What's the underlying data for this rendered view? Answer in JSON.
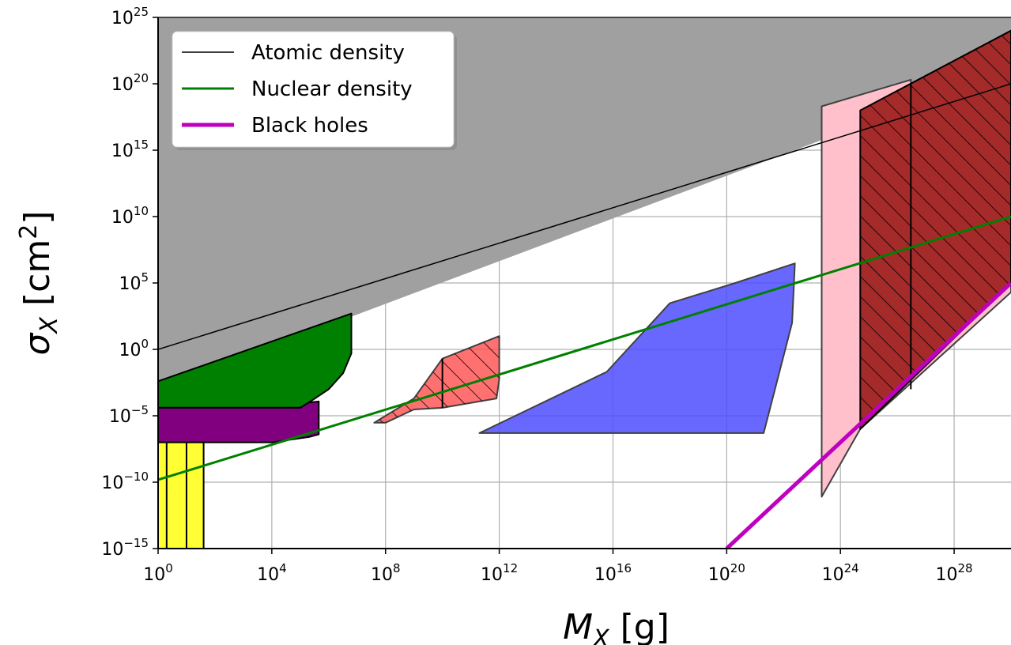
{
  "chart_data": {
    "type": "area",
    "xscale": "log",
    "yscale": "log",
    "xlabel_base": "M",
    "xlabel_sub": "X",
    "xlabel_unit": " [g]",
    "ylabel_base": "σ",
    "ylabel_sub": "X",
    "ylabel_unit": " [cm",
    "ylabel_unit_sup": "2",
    "ylabel_unit_close": "]",
    "xlim": [
      1,
      1e+30
    ],
    "ylim": [
      1e-15,
      1e+25
    ],
    "grid": true,
    "legend_position": "top-left",
    "x_ticks": [
      {
        "value": 1,
        "base": "10",
        "exp": "0"
      },
      {
        "value": 10000.0,
        "base": "10",
        "exp": "4"
      },
      {
        "value": 100000000.0,
        "base": "10",
        "exp": "8"
      },
      {
        "value": 1000000000000.0,
        "base": "10",
        "exp": "12"
      },
      {
        "value": 1e+16,
        "base": "10",
        "exp": "16"
      },
      {
        "value": 1e+20,
        "base": "10",
        "exp": "20"
      },
      {
        "value": 1e+24,
        "base": "10",
        "exp": "24"
      },
      {
        "value": 1e+28,
        "base": "10",
        "exp": "28"
      }
    ],
    "y_ticks": [
      {
        "value": 1e-15,
        "base": "10",
        "exp": "−15"
      },
      {
        "value": 1e-10,
        "base": "10",
        "exp": "−10"
      },
      {
        "value": 1e-05,
        "base": "10",
        "exp": "−5"
      },
      {
        "value": 1,
        "base": "10",
        "exp": "0"
      },
      {
        "value": 100000.0,
        "base": "10",
        "exp": "5"
      },
      {
        "value": 10000000000.0,
        "base": "10",
        "exp": "10"
      },
      {
        "value": 1000000000000000.0,
        "base": "10",
        "exp": "15"
      },
      {
        "value": 1e+20,
        "base": "10",
        "exp": "20"
      },
      {
        "value": 1e+25,
        "base": "10",
        "exp": "25"
      }
    ],
    "series": [
      {
        "name": "Atomic density",
        "color": "#000000",
        "width": 1.5,
        "x": [
          1,
          1e+30
        ],
        "y": [
          1,
          1e+20
        ]
      },
      {
        "name": "Nuclear density",
        "color": "#008000",
        "width": 3,
        "x": [
          1,
          1e+30
        ],
        "y": [
          1.5e-10,
          10000000000.0
        ]
      },
      {
        "name": "Black holes",
        "color": "#bf00bf",
        "width": 5,
        "x": [
          1e+20,
          1e+30
        ],
        "y": [
          1e-15,
          100000.0
        ]
      }
    ],
    "regions": [
      {
        "id": "gray-excluded",
        "fill": "#a0a0a0",
        "opacity": 1,
        "stroke": "none",
        "points": [
          [
            1,
            1e+25
          ],
          [
            1e+30,
            1e+25
          ],
          [
            1e+30,
            1.3e+21
          ],
          [
            1,
            0.001
          ]
        ]
      },
      {
        "id": "green-region",
        "fill": "#008000",
        "opacity": 1,
        "stroke": "#000000",
        "points": [
          [
            1,
            0.004
          ],
          [
            6300000.0,
            500.0
          ],
          [
            6300000.0,
            0.5
          ],
          [
            3200000.0,
            0.016
          ],
          [
            1000000.0,
            0.001
          ],
          [
            200000.0,
            0.0001
          ],
          [
            100000.0,
            4e-05
          ],
          [
            1,
            4e-05
          ]
        ]
      },
      {
        "id": "purple-region",
        "fill": "#800080",
        "opacity": 1,
        "stroke": "#000000",
        "points": [
          [
            1,
            4e-05
          ],
          [
            100000.0,
            4e-05
          ],
          [
            200000.0,
            0.0001
          ],
          [
            450000.0,
            0.00012
          ],
          [
            450000.0,
            4e-07
          ],
          [
            200000.0,
            2.5e-07
          ],
          [
            10000.0,
            1e-07
          ],
          [
            1,
            1e-07
          ]
        ]
      },
      {
        "id": "yellow-region",
        "fill": "#ffff33",
        "opacity": 1,
        "stroke": "#000000",
        "points": [
          [
            1,
            1e-07
          ],
          [
            40,
            1e-07
          ],
          [
            40,
            1e-15
          ],
          [
            1,
            1e-15
          ]
        ]
      },
      {
        "id": "red-region",
        "fill": "#ff4d4d",
        "opacity": 0.8,
        "stroke": "#404040",
        "points": [
          [
            40000000.0,
            3e-06
          ],
          [
            100000000.0,
            3e-06
          ],
          [
            1000000000.0,
            3e-05
          ],
          [
            10000000000.0,
            4e-05
          ],
          [
            800000000000.0,
            0.0002
          ],
          [
            1000000000000.0,
            0.006
          ],
          [
            1000000000000.0,
            10.0
          ],
          [
            10000000000.0,
            0.2
          ],
          [
            1000000000.0,
            0.0002
          ]
        ]
      },
      {
        "id": "blue-region",
        "fill": "#4d4dff",
        "opacity": 0.85,
        "stroke": "#404040",
        "points": [
          [
            200000000000.0,
            5e-07
          ],
          [
            2e+21,
            5e-07
          ],
          [
            2e+22,
            100.0
          ],
          [
            2.5e+22,
            3000000.0
          ],
          [
            2e+20,
            100000.0
          ],
          [
            1e+18,
            3000.0
          ],
          [
            6000000000000000.0,
            0.02
          ]
        ]
      },
      {
        "id": "pink-region",
        "fill": "#ffc0cb",
        "opacity": 1,
        "stroke": "#404040",
        "points": [
          [
            2.2e+23,
            8e-12
          ],
          [
            2.2e+23,
            2e+18
          ],
          [
            3e+26,
            2e+20
          ],
          [
            3e+26,
            1e+20
          ],
          [
            1e+30,
            1e+24
          ],
          [
            1e+30,
            20000.0
          ],
          [
            5e+24,
            1e-06
          ]
        ]
      },
      {
        "id": "darkred-region",
        "fill": "#a52a2a",
        "opacity": 1,
        "stroke": "#000000",
        "points": [
          [
            5e+24,
            1e-06
          ],
          [
            5e+24,
            1e+18
          ],
          [
            1e+30,
            1e+24
          ],
          [
            1e+30,
            100000.0
          ]
        ]
      }
    ],
    "hatching": [
      {
        "region": "red-region",
        "angle": 45
      },
      {
        "region": "darkred-region",
        "angle": 45
      }
    ],
    "vertical_lines": [
      {
        "x": 10000000000.0,
        "y1": 4e-05,
        "y2": 0.2,
        "region": "red-region"
      },
      {
        "x": 3e+26,
        "y1": 0.001,
        "y2": 1e+20,
        "region": "darkred-region"
      },
      {
        "x": 2,
        "y1": 1e-15,
        "y2": 1e-07,
        "region": "yellow-region"
      },
      {
        "x": 10,
        "y1": 1e-15,
        "y2": 1e-07,
        "region": "yellow-region"
      }
    ]
  }
}
